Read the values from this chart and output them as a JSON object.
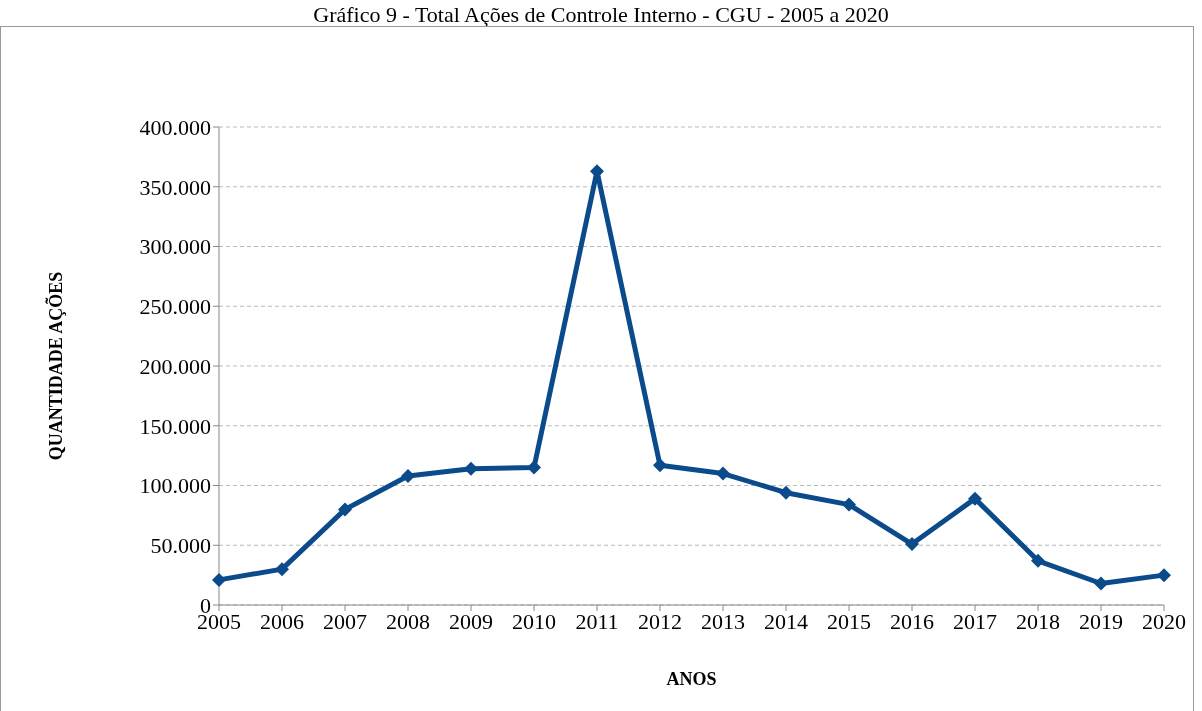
{
  "chart_data": {
    "type": "line",
    "title": "Gráfico 9 - Total Ações de Controle Interno - CGU - 2005 a 2020",
    "xlabel": "ANOS",
    "ylabel": "QUANTIDADE AÇÕES",
    "categories": [
      "2005",
      "2006",
      "2007",
      "2008",
      "2009",
      "2010",
      "2011",
      "2012",
      "2013",
      "2014",
      "2015",
      "2016",
      "2017",
      "2018",
      "2019",
      "2020"
    ],
    "series": [
      {
        "color": "#0b4a8b",
        "values": [
          21000,
          30000,
          80000,
          108000,
          114000,
          115000,
          363000,
          117000,
          110000,
          94000,
          84000,
          51000,
          89000,
          37000,
          18000,
          25000
        ]
      }
    ],
    "ylim": [
      0,
      400000
    ],
    "yticks": [
      {
        "value": 0,
        "label": "0"
      },
      {
        "value": 50000,
        "label": "50.000"
      },
      {
        "value": 100000,
        "label": "100.000"
      },
      {
        "value": 150000,
        "label": "150.000"
      },
      {
        "value": 200000,
        "label": "200.000"
      },
      {
        "value": 250000,
        "label": "250.000"
      },
      {
        "value": 300000,
        "label": "300.000"
      },
      {
        "value": 350000,
        "label": "350.000"
      },
      {
        "value": 400000,
        "label": "400.000"
      }
    ],
    "grid": "y",
    "marker": "diamond",
    "line_style": "solid"
  }
}
